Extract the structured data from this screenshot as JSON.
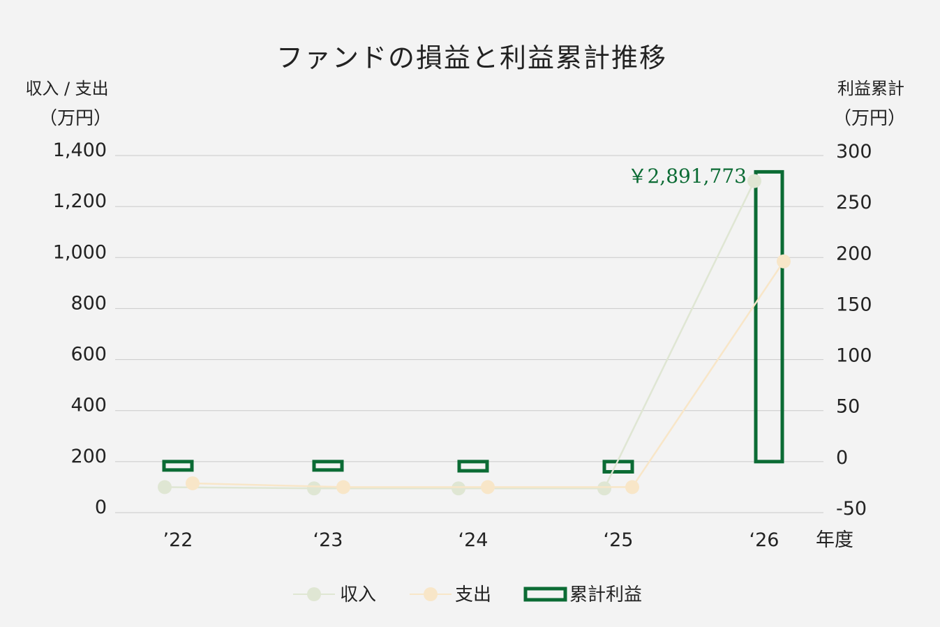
{
  "chart_data": {
    "type": "bar",
    "title": "ファンドの損益と利益累計推移",
    "y_left_label_line1": "収入 / 支出",
    "y_left_label_line2": "（万円）",
    "y_right_label_line1": "利益累計",
    "y_right_label_line2": "（万円）",
    "xlabel": "年度",
    "categories": [
      "’22",
      "‘23",
      "‘24",
      "‘25",
      "‘26"
    ],
    "y_left_ticks": [
      "1,400",
      "1,200",
      "1,000",
      "800",
      "600",
      "400",
      "200",
      "0"
    ],
    "y_right_ticks": [
      "300",
      "250",
      "200",
      "150",
      "100",
      "50",
      "0",
      "-50"
    ],
    "y_left_range": [
      0,
      1400
    ],
    "y_right_range": [
      -50,
      300
    ],
    "grid": true,
    "legend_position": "bottom",
    "series": [
      {
        "name": "収入",
        "type": "line",
        "axis": "left",
        "color": "#dfe6d3",
        "values": [
          100,
          95,
          95,
          95,
          1300
        ]
      },
      {
        "name": "支出",
        "type": "line",
        "axis": "left",
        "color": "#f8e6c8",
        "values": [
          115,
          100,
          100,
          100,
          985
        ]
      },
      {
        "name": "累計利益",
        "type": "bar",
        "axis": "right",
        "color": "#0b6b34",
        "values": [
          -5,
          -8,
          -9,
          -10,
          284
        ]
      }
    ],
    "annotation": "￥2,891,773"
  }
}
